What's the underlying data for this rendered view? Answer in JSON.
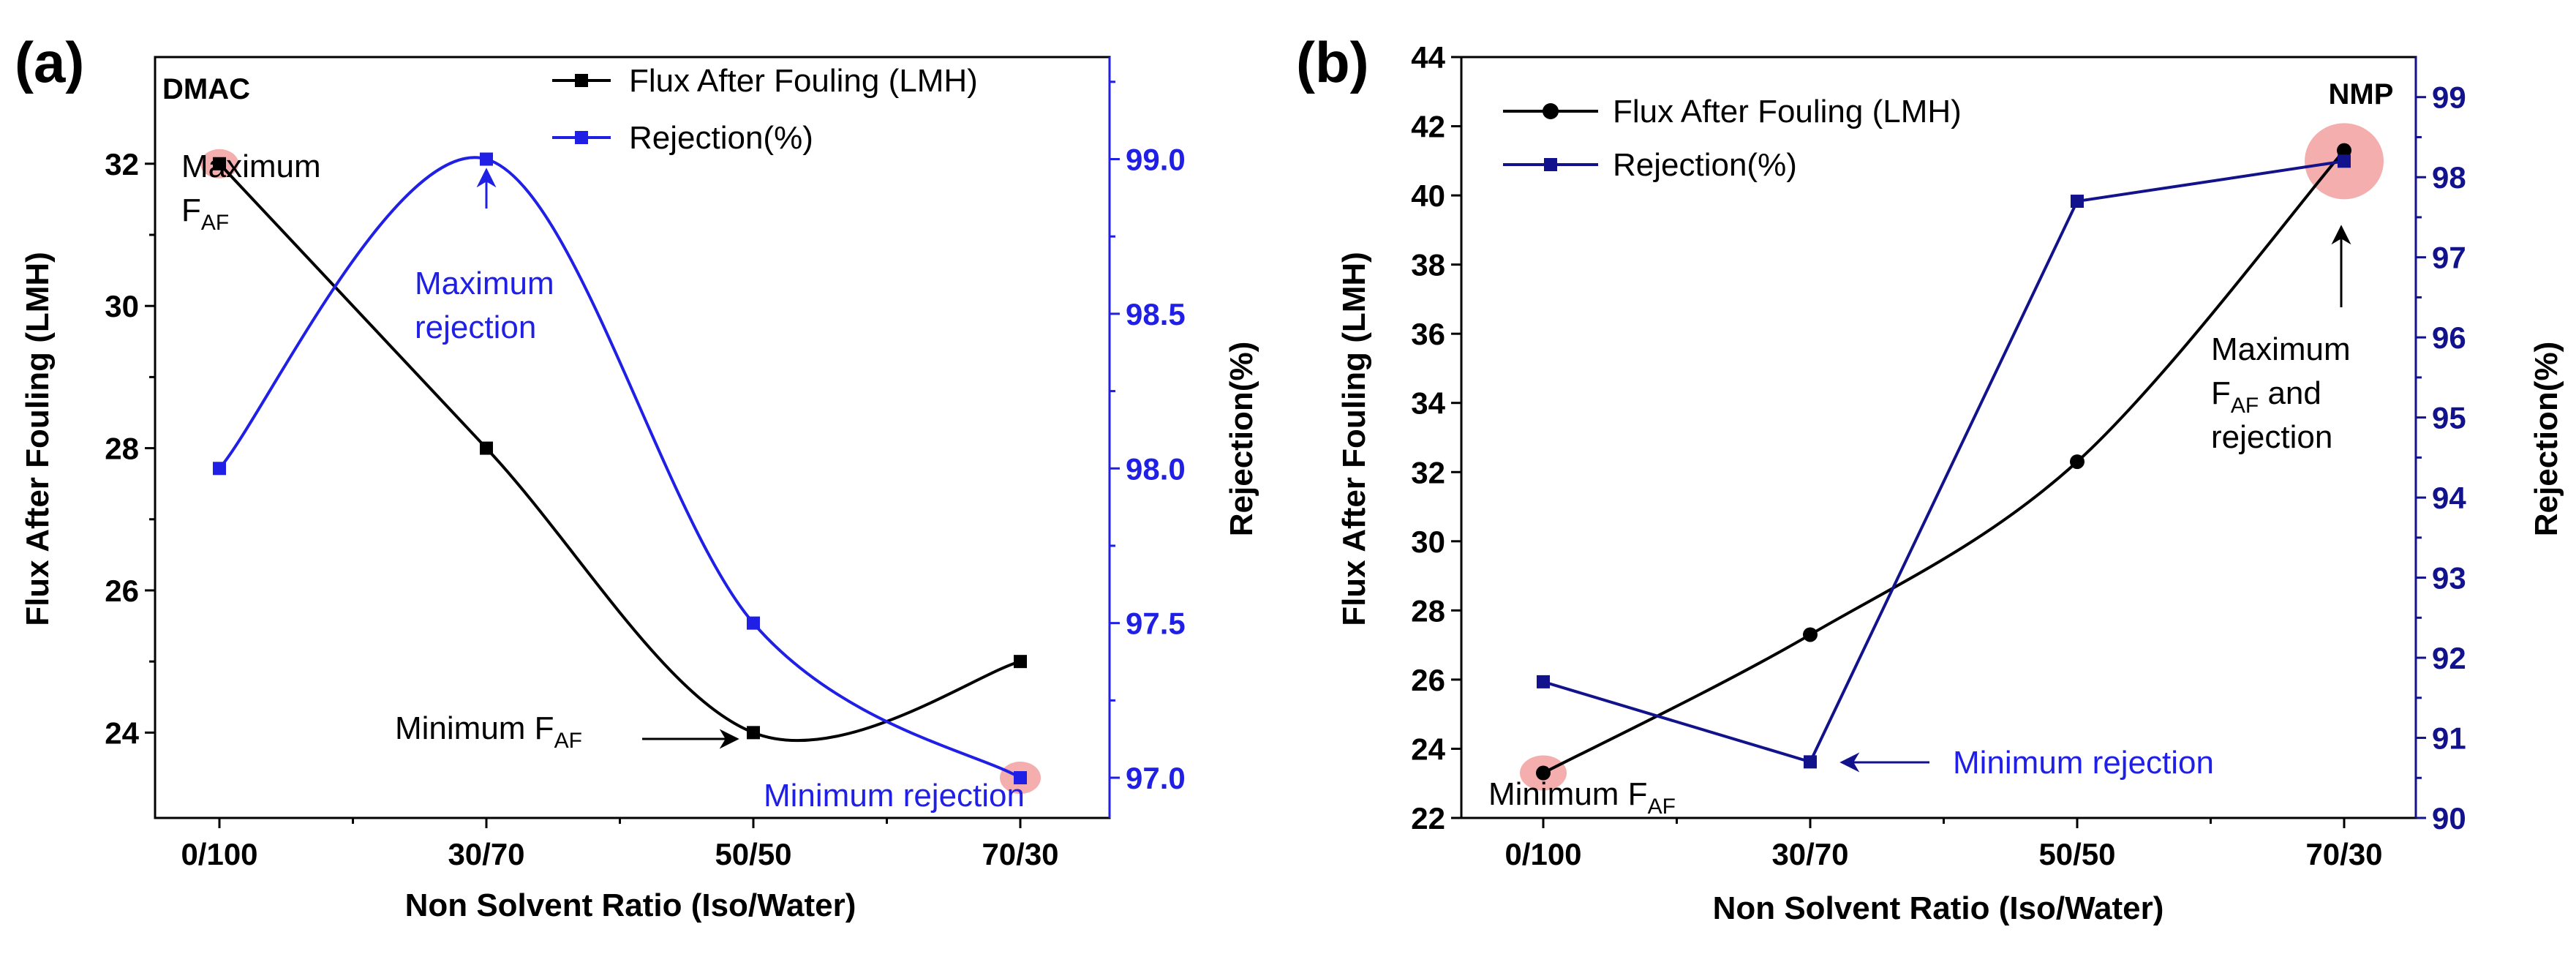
{
  "colors": {
    "black": "#000000",
    "blue": "#1f1fe6",
    "navy": "#12128c",
    "highlight": "#f2a0a0"
  },
  "chart_data": [
    {
      "panel_label": "(a)",
      "type": "line",
      "title": "",
      "solvent_label": "DMAC",
      "xlabel": "Non Solvent Ratio (Iso/Water)",
      "ylabel": "Flux After Fouling (LMH)",
      "y2label": "Rejection(%)",
      "categories": [
        "0/100",
        "30/70",
        "50/50",
        "70/30"
      ],
      "ylim": [
        22.8,
        33.5
      ],
      "y2lim": [
        96.87,
        99.33
      ],
      "yticks": [
        "24",
        "26",
        "28",
        "30",
        "32"
      ],
      "y2ticks": [
        "97.0",
        "97.5",
        "98.0",
        "98.5",
        "99.0"
      ],
      "legend_position": "top-right",
      "series": [
        {
          "name": "Flux After Fouling (LMH)",
          "axis": "left",
          "values": [
            32,
            28,
            24,
            25
          ],
          "color": "#000000",
          "marker": "square",
          "curve": "spline"
        },
        {
          "name": "Rejection(%)",
          "axis": "right",
          "values": [
            98.0,
            99.0,
            97.5,
            97.0
          ],
          "color": "#1f1fe6",
          "marker": "square",
          "curve": "spline"
        }
      ],
      "annotations": {
        "max_flux_line1": "Maximum",
        "max_flux_line2": "F",
        "max_flux_sub": "AF",
        "max_rej_line1": "Maximum",
        "max_rej_line2": "rejection",
        "min_flux_main": "Minimum F",
        "min_flux_sub": "AF",
        "min_rej": "Minimum rejection"
      }
    },
    {
      "panel_label": "(b)",
      "type": "line",
      "title": "",
      "solvent_label": "NMP",
      "xlabel": "Non Solvent Ratio (Iso/Water)",
      "ylabel": "Flux After Fouling (LMH)",
      "y2label": "Rejection(%)",
      "categories": [
        "0/100",
        "30/70",
        "50/50",
        "70/30"
      ],
      "ylim": [
        22,
        44
      ],
      "y2lim": [
        90,
        99.5
      ],
      "yticks": [
        "22",
        "24",
        "26",
        "28",
        "30",
        "32",
        "34",
        "36",
        "38",
        "40",
        "42",
        "44"
      ],
      "y2ticks": [
        "90",
        "91",
        "92",
        "93",
        "94",
        "95",
        "96",
        "97",
        "98",
        "99"
      ],
      "legend_position": "top-left",
      "series": [
        {
          "name": "Flux After Fouling (LMH)",
          "axis": "left",
          "values": [
            23.3,
            27.3,
            32.3,
            41.3
          ],
          "color": "#000000",
          "marker": "circle",
          "curve": "spline"
        },
        {
          "name": "Rejection(%)",
          "axis": "right",
          "values": [
            91.7,
            90.7,
            97.7,
            98.2
          ],
          "color": "#12128c",
          "marker": "square",
          "curve": "linear"
        }
      ],
      "annotations": {
        "max_line1": "Maximum",
        "max_line2_main": "F",
        "max_line2_sub": "AF",
        "max_line2_rest": " and",
        "max_line3": "rejection",
        "min_flux_main": "Minimum F",
        "min_flux_sub": "AF",
        "min_rej": "Minimum rejection"
      }
    }
  ]
}
